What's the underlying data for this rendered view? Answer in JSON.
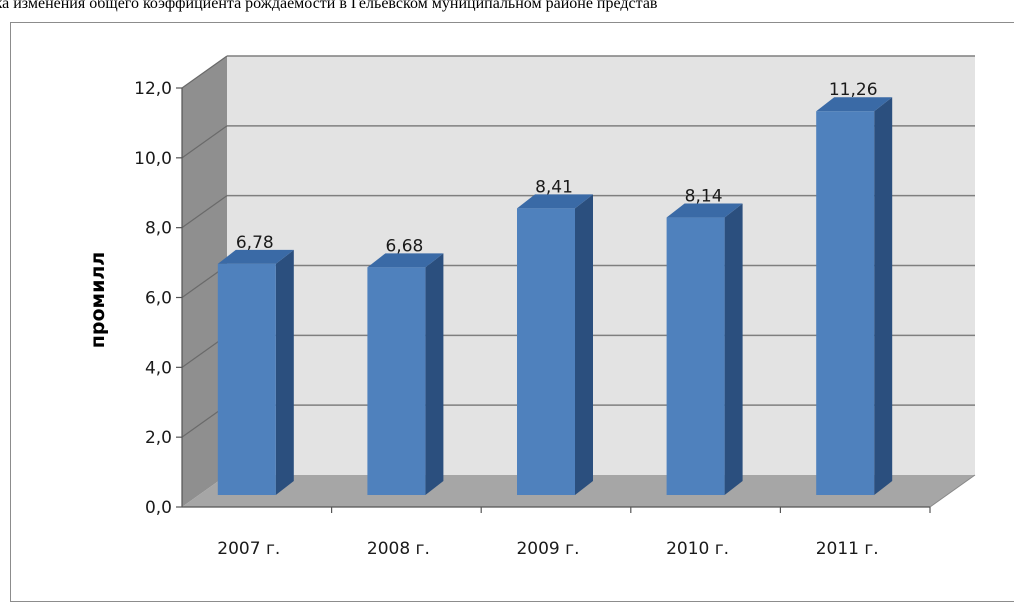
{
  "caption": "ика изменения общего коэффициента рождаемости в Гельевском муниципальном районе представ",
  "chart_data": {
    "type": "bar",
    "title": "",
    "xlabel": "",
    "ylabel": "промилл",
    "categories": [
      "2007 г.",
      "2008 г.",
      "2009 г.",
      "2010 г.",
      "2011 г."
    ],
    "values": [
      6.78,
      6.68,
      8.41,
      8.14,
      11.26
    ],
    "value_labels": [
      "6,78",
      "6,68",
      "8,41",
      "8,14",
      "11,26"
    ],
    "ylim": [
      0,
      12
    ],
    "yticks": [
      "0,0",
      "2,0",
      "4,0",
      "6,0",
      "8,0",
      "10,0",
      "12,0"
    ],
    "grid": true,
    "style": "3d-column",
    "colors": {
      "bar_front": "#4f81bd",
      "bar_top": "#3a6aa6",
      "bar_side": "#2b4f7e",
      "back_wall": "#e3e3e3",
      "side_wall": "#8f8f8f",
      "floor": "#a6a6a6"
    }
  }
}
